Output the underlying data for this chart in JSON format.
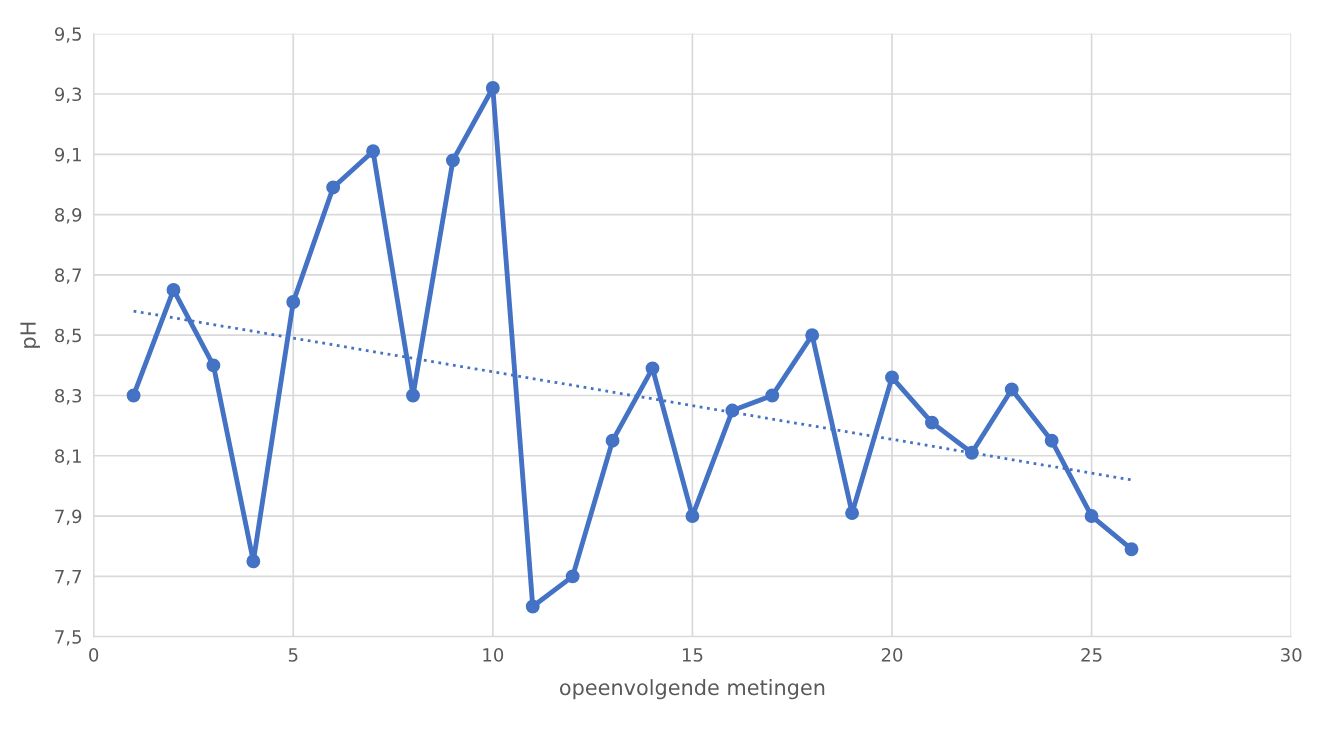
{
  "chart_data": {
    "type": "line",
    "xlabel": "opeenvolgende metingen",
    "ylabel": "pH",
    "xlim": [
      0,
      30
    ],
    "xticks": [
      0,
      5,
      10,
      15,
      20,
      25,
      30
    ],
    "ylim": [
      7.5,
      9.5
    ],
    "yticks": [
      {
        "value": 7.5,
        "label": "7,5"
      },
      {
        "value": 7.7,
        "label": "7,7"
      },
      {
        "value": 7.9,
        "label": "7,9"
      },
      {
        "value": 8.1,
        "label": "8,1"
      },
      {
        "value": 8.3,
        "label": "8,3"
      },
      {
        "value": 8.5,
        "label": "8,5"
      },
      {
        "value": 8.7,
        "label": "8,7"
      },
      {
        "value": 8.9,
        "label": "8,9"
      },
      {
        "value": 9.1,
        "label": "9,1"
      },
      {
        "value": 9.3,
        "label": "9,3"
      },
      {
        "value": 9.5,
        "label": "9,5"
      }
    ],
    "grid": true,
    "legend": false,
    "series": [
      {
        "color": "#4472c4",
        "marker": "circle",
        "line_style": "solid",
        "x": [
          1,
          2,
          3,
          4,
          5,
          6,
          7,
          8,
          9,
          10,
          11,
          12,
          13,
          14,
          15,
          16,
          17,
          18,
          19,
          20,
          21,
          22,
          23,
          24,
          25,
          26
        ],
        "values": [
          8.3,
          8.65,
          8.4,
          7.75,
          8.61,
          8.99,
          9.11,
          8.3,
          9.08,
          9.32,
          7.6,
          7.7,
          8.15,
          8.39,
          7.9,
          8.25,
          8.3,
          8.5,
          7.91,
          8.36,
          8.21,
          8.11,
          8.32,
          8.15,
          7.9,
          7.79
        ]
      },
      {
        "color": "#4472c4",
        "marker": "none",
        "line_style": "dotted",
        "x": [
          1,
          26
        ],
        "values": [
          8.58,
          8.02
        ]
      }
    ]
  }
}
